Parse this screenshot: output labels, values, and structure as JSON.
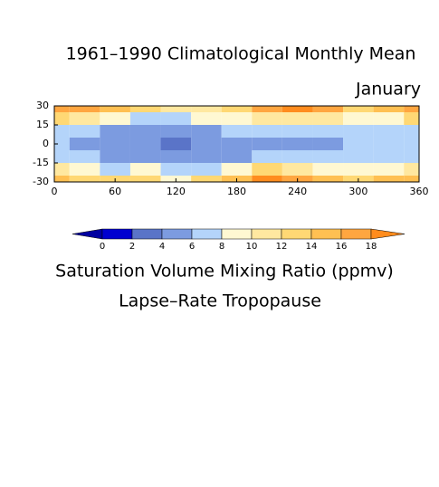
{
  "chart_data": {
    "type": "contour",
    "title": "1961–1990 Climatological Monthly Mean",
    "subtitle": "January",
    "caption": "Saturation Volume Mixing Ratio (ppmv)",
    "caption2": "Lapse–Rate Tropopause",
    "x": [
      0,
      30,
      60,
      90,
      120,
      150,
      180,
      210,
      240,
      270,
      300,
      330,
      360
    ],
    "y": [
      30,
      20,
      10,
      0,
      -10,
      -20,
      -30
    ],
    "z": [
      [
        17,
        16,
        14,
        12,
        10,
        11,
        13,
        17,
        18,
        16,
        13,
        14,
        17
      ],
      [
        12,
        10,
        8,
        7,
        7,
        8,
        9,
        11,
        11,
        10,
        9,
        9,
        12
      ],
      [
        7,
        6,
        5,
        5,
        5,
        5,
        6,
        7,
        7,
        7,
        6,
        6,
        7
      ],
      [
        6,
        5,
        5,
        4,
        3,
        4,
        4,
        5,
        5,
        5,
        6,
        6,
        6
      ],
      [
        7,
        6,
        5,
        5,
        4,
        5,
        5,
        6,
        6,
        6,
        6,
        7,
        7
      ],
      [
        10,
        8,
        7,
        8,
        6,
        7,
        9,
        13,
        11,
        9,
        8,
        9,
        10
      ],
      [
        15,
        13,
        12,
        13,
        8,
        12,
        14,
        18,
        16,
        14,
        12,
        14,
        15
      ]
    ],
    "xlim": [
      0,
      360
    ],
    "xticks": [
      0,
      60,
      120,
      180,
      240,
      300,
      360
    ],
    "ylim": [
      -30,
      30
    ],
    "yticks": [
      30,
      15,
      0,
      -15,
      -30
    ],
    "levels": [
      0,
      2,
      4,
      6,
      8,
      10,
      12,
      14,
      16,
      18
    ],
    "colors": [
      "#0000a0",
      "#0000d0",
      "#5a74c8",
      "#7c9be0",
      "#b4d4fa",
      "#fff8d2",
      "#ffe8a0",
      "#ffd874",
      "#ffc052",
      "#ffa640",
      "#ff8c1e"
    ]
  }
}
